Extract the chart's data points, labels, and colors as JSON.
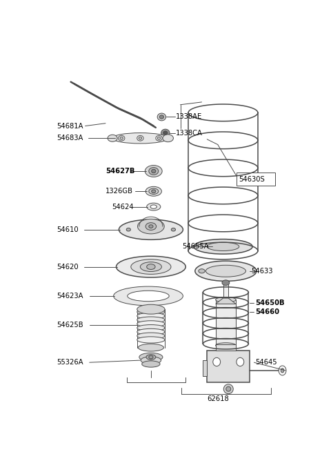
{
  "bg_color": "#ffffff",
  "line_color": "#4a4a4a",
  "label_color": "#000000",
  "bold_labels": [
    "54627B",
    "54650B",
    "54660"
  ],
  "lw_thin": 0.7,
  "lw_med": 1.1,
  "lw_thick": 1.8
}
